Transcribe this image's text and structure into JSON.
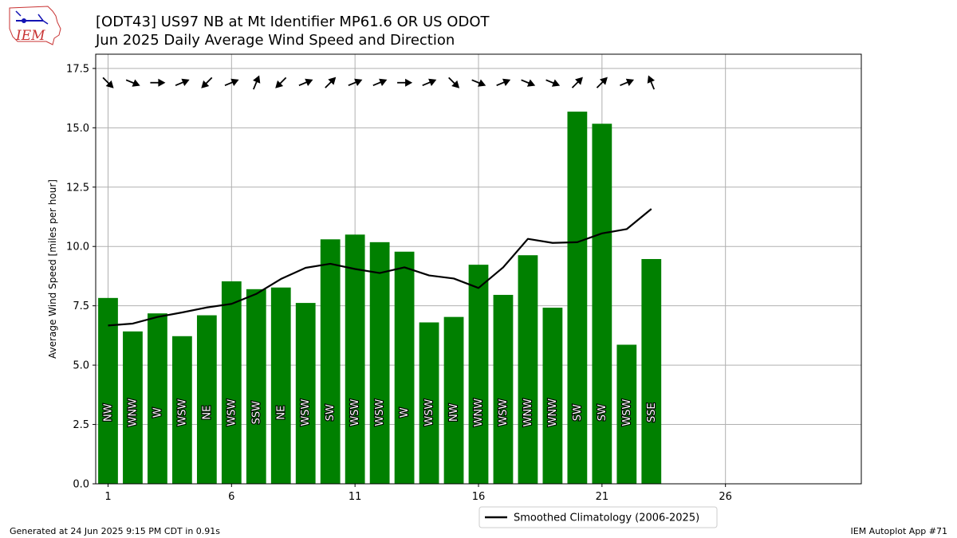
{
  "header": {
    "title": "[ODT43] US97 NB at Mt Identifier MP61.6  OR US ODOT",
    "subtitle": "Jun 2025 Daily Average Wind Speed and Direction",
    "logo_text": "IEM"
  },
  "footer": {
    "left": "Generated at 24 Jun 2025 9:15 PM CDT in 0.91s",
    "right": "IEM Autoplot App #71"
  },
  "colors": {
    "bar": "#008000",
    "line": "#000000",
    "grid": "#b0b0b0"
  },
  "chart_data": {
    "type": "bar",
    "ylabel": "Average Wind Speed [miles per hour]",
    "xlim": [
      0.5,
      31.5
    ],
    "ylim": [
      0,
      18.1
    ],
    "xticks": [
      1,
      6,
      11,
      16,
      21,
      26
    ],
    "yticks": [
      0.0,
      2.5,
      5.0,
      7.5,
      10.0,
      12.5,
      15.0,
      17.5
    ],
    "grid": true,
    "legend_position": "below-center",
    "days": [
      1,
      2,
      3,
      4,
      5,
      6,
      7,
      8,
      9,
      10,
      11,
      12,
      13,
      14,
      15,
      16,
      17,
      18,
      19,
      20,
      21,
      22,
      23
    ],
    "values": [
      7.83,
      6.42,
      7.18,
      6.22,
      7.1,
      8.53,
      8.2,
      8.27,
      7.62,
      10.3,
      10.5,
      10.18,
      9.78,
      6.8,
      7.03,
      9.23,
      7.96,
      9.63,
      7.42,
      15.68,
      15.17,
      5.86,
      9.47
    ],
    "directions": [
      "NW",
      "WNW",
      "W",
      "WSW",
      "NE",
      "WSW",
      "SSW",
      "NE",
      "WSW",
      "SW",
      "WSW",
      "WSW",
      "W",
      "WSW",
      "NW",
      "WNW",
      "WSW",
      "WNW",
      "WNW",
      "SW",
      "SW",
      "WSW",
      "SSE"
    ],
    "climatology": {
      "name": "Smoothed Climatology (2006-2025)",
      "values": [
        6.67,
        6.75,
        7.03,
        7.22,
        7.43,
        7.58,
        8.0,
        8.63,
        9.1,
        9.27,
        9.05,
        8.88,
        9.12,
        8.78,
        8.65,
        8.25,
        9.12,
        10.32,
        10.15,
        10.18,
        10.55,
        10.73,
        11.58
      ]
    }
  }
}
